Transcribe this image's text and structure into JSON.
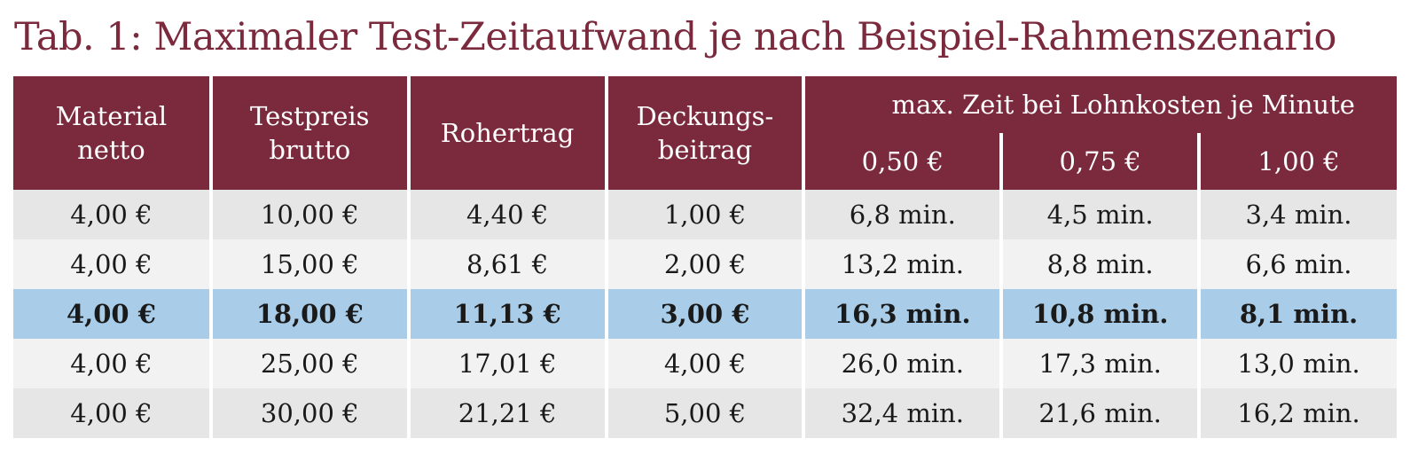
{
  "title": "Tab. 1: Maximaler Test-Zeitaufwand je nach Beispiel-Rahmenszenario",
  "colors": {
    "header_bg": "#7a2a3c",
    "title_color": "#7a2a3c",
    "row_dark": "#e6e6e6",
    "row_light": "#f2f2f2",
    "row_highlight": "#a9cde8"
  },
  "header": {
    "material": [
      "Material",
      "netto"
    ],
    "testpreis": [
      "Testpreis",
      "brutto"
    ],
    "rohertrag": "Rohertrag",
    "deckung": [
      "Deckungs-",
      "beitrag"
    ],
    "group": "max. Zeit bei Lohnkosten je Minute",
    "sub": [
      "0,50 €",
      "0,75 €",
      "1,00 €"
    ]
  },
  "rows": [
    {
      "cells": [
        "4,00 €",
        "10,00 €",
        "4,40 €",
        "1,00 €",
        "6,8 min.",
        "4,5 min.",
        "3,4 min."
      ],
      "highlight": false
    },
    {
      "cells": [
        "4,00 €",
        "15,00 €",
        "8,61 €",
        "2,00 €",
        "13,2 min.",
        "8,8 min.",
        "6,6 min."
      ],
      "highlight": false
    },
    {
      "cells": [
        "4,00 €",
        "18,00 €",
        "11,13 €",
        "3,00 €",
        "16,3 min.",
        "10,8 min.",
        "8,1 min."
      ],
      "highlight": true
    },
    {
      "cells": [
        "4,00 €",
        "25,00 €",
        "17,01 €",
        "4,00 €",
        "26,0 min.",
        "17,3 min.",
        "13,0 min."
      ],
      "highlight": false
    },
    {
      "cells": [
        "4,00 €",
        "30,00 €",
        "21,21 €",
        "5,00 €",
        "32,4 min.",
        "21,6 min.",
        "16,2 min."
      ],
      "highlight": false
    }
  ]
}
